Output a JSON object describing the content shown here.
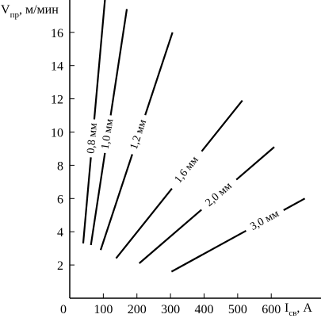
{
  "chart_data": {
    "type": "line",
    "ylabel": {
      "main": "V",
      "sub": "пр",
      "unit": ", м/мин"
    },
    "xlabel": {
      "main": "I",
      "sub": "св",
      "unit": ", А"
    },
    "origin_label": "0",
    "xlim": [
      0,
      700
    ],
    "ylim": [
      0,
      18
    ],
    "x_ticks": [
      100,
      200,
      300,
      400,
      500,
      600
    ],
    "y_ticks": [
      2,
      4,
      6,
      8,
      10,
      12,
      14,
      16
    ],
    "grid": false,
    "series": [
      {
        "name": "0,8 мм",
        "points": [
          [
            40,
            3.3
          ],
          [
            105,
            18.0
          ]
        ]
      },
      {
        "name": "1,0 мм",
        "points": [
          [
            63,
            3.2
          ],
          [
            170,
            17.4
          ]
        ]
      },
      {
        "name": "1,2 мм",
        "points": [
          [
            92,
            2.9
          ],
          [
            306,
            16.0
          ]
        ]
      },
      {
        "name": "1,6 мм",
        "points": [
          [
            138,
            2.4
          ],
          [
            514,
            11.9
          ]
        ]
      },
      {
        "name": "2,0 мм",
        "points": [
          [
            207,
            2.1
          ],
          [
            609,
            9.1
          ]
        ]
      },
      {
        "name": "3,0 мм",
        "points": [
          [
            303,
            1.6
          ],
          [
            700,
            6.0
          ]
        ]
      }
    ]
  }
}
